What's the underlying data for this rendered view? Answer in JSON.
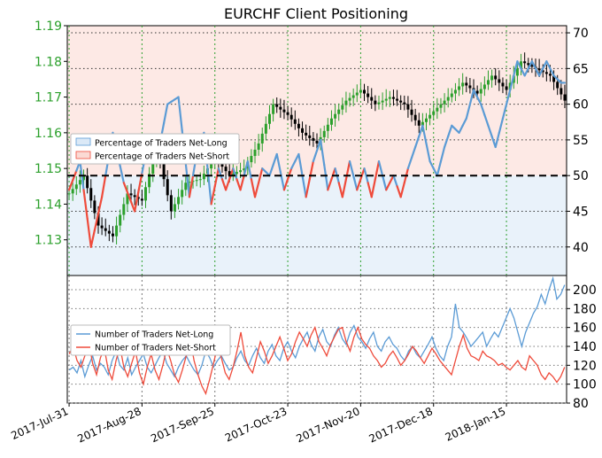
{
  "chart_data": {
    "type": "line",
    "title": "EURCHF Client Positioning",
    "colors": {
      "long": "#5b9bd5",
      "short": "#ef4b3b",
      "long_fill": "#dbe9f7",
      "short_fill": "#fbdad4",
      "grid_green": "#2ca02c",
      "candle_up": "#2ca02c",
      "candle_down": "#000000"
    },
    "x_labels": [
      "2017-Jul-31",
      "2017-Aug-28",
      "2017-Sep-25",
      "2017-Oct-23",
      "2017-Nov-20",
      "2017-Dec-18",
      "2018-Jan-15"
    ],
    "price_axis": {
      "ylim": [
        1.12,
        1.19
      ],
      "ticks": [
        "1.13",
        "1.14",
        "1.15",
        "1.16",
        "1.17",
        "1.18",
        "1.19"
      ]
    },
    "sentiment_axis": {
      "ylim": [
        36,
        71
      ],
      "ticks": [
        "40",
        "45",
        "50",
        "55",
        "60",
        "65",
        "70"
      ],
      "reference": 50
    },
    "count_axis": {
      "ylim": [
        80,
        215
      ],
      "ticks": [
        "80",
        "100",
        "120",
        "140",
        "160",
        "180",
        "200"
      ]
    },
    "legend_top": [
      {
        "label": "Percentage of Traders Net-Long"
      },
      {
        "label": "Percentage of Traders Net-Short"
      }
    ],
    "legend_bottom": [
      {
        "label": "Number of Traders Net-Long"
      },
      {
        "label": "Number of Traders Net-Short"
      }
    ],
    "price_anchors": [
      [
        0,
        1.143
      ],
      [
        4,
        1.148
      ],
      [
        8,
        1.134
      ],
      [
        12,
        1.131
      ],
      [
        16,
        1.143
      ],
      [
        20,
        1.141
      ],
      [
        24,
        1.156
      ],
      [
        28,
        1.138
      ],
      [
        32,
        1.146
      ],
      [
        36,
        1.147
      ],
      [
        40,
        1.153
      ],
      [
        44,
        1.148
      ],
      [
        48,
        1.15
      ],
      [
        52,
        1.157
      ],
      [
        56,
        1.168
      ],
      [
        60,
        1.165
      ],
      [
        64,
        1.16
      ],
      [
        68,
        1.157
      ],
      [
        72,
        1.164
      ],
      [
        76,
        1.169
      ],
      [
        80,
        1.172
      ],
      [
        84,
        1.168
      ],
      [
        88,
        1.17
      ],
      [
        92,
        1.168
      ],
      [
        96,
        1.162
      ],
      [
        100,
        1.166
      ],
      [
        104,
        1.17
      ],
      [
        108,
        1.174
      ],
      [
        112,
        1.171
      ],
      [
        116,
        1.176
      ],
      [
        120,
        1.172
      ],
      [
        124,
        1.18
      ],
      [
        128,
        1.178
      ],
      [
        132,
        1.176
      ],
      [
        136,
        1.169
      ]
    ],
    "pct_long_anchors": [
      [
        0,
        48
      ],
      [
        3,
        52
      ],
      [
        6,
        40
      ],
      [
        9,
        47
      ],
      [
        12,
        56
      ],
      [
        15,
        49
      ],
      [
        18,
        45
      ],
      [
        21,
        53
      ],
      [
        24,
        52
      ],
      [
        27,
        60
      ],
      [
        30,
        61
      ],
      [
        33,
        47
      ],
      [
        35,
        53
      ],
      [
        37,
        56
      ],
      [
        39,
        46
      ],
      [
        41,
        51
      ],
      [
        43,
        48
      ],
      [
        45,
        51
      ],
      [
        47,
        48
      ],
      [
        49,
        52
      ],
      [
        51,
        47
      ],
      [
        53,
        51
      ],
      [
        55,
        50
      ],
      [
        57,
        53
      ],
      [
        59,
        48
      ],
      [
        61,
        51
      ],
      [
        63,
        53
      ],
      [
        65,
        47
      ],
      [
        67,
        52
      ],
      [
        69,
        55
      ],
      [
        71,
        48
      ],
      [
        73,
        51
      ],
      [
        75,
        47
      ],
      [
        77,
        52
      ],
      [
        79,
        48
      ],
      [
        81,
        51
      ],
      [
        83,
        47
      ],
      [
        85,
        52
      ],
      [
        87,
        48
      ],
      [
        89,
        50
      ],
      [
        91,
        47
      ],
      [
        93,
        51
      ],
      [
        95,
        54
      ],
      [
        97,
        57
      ],
      [
        99,
        52
      ],
      [
        101,
        50
      ],
      [
        103,
        54
      ],
      [
        105,
        57
      ],
      [
        107,
        56
      ],
      [
        109,
        58
      ],
      [
        111,
        62
      ],
      [
        113,
        60
      ],
      [
        115,
        57
      ],
      [
        117,
        54
      ],
      [
        119,
        58
      ],
      [
        121,
        62
      ],
      [
        123,
        66
      ],
      [
        125,
        64
      ],
      [
        127,
        66
      ],
      [
        129,
        64
      ],
      [
        131,
        66
      ],
      [
        133,
        64
      ],
      [
        135,
        63
      ]
    ],
    "long_count": [
      115,
      118,
      112,
      125,
      108,
      120,
      130,
      115,
      122,
      118,
      110,
      125,
      135,
      120,
      115,
      128,
      110,
      118,
      125,
      132,
      118,
      112,
      120,
      128,
      135,
      122,
      115,
      108,
      118,
      125,
      130,
      122,
      115,
      110,
      120,
      135,
      128,
      118,
      125,
      130,
      122,
      115,
      118,
      128,
      135,
      125,
      120,
      130,
      138,
      128,
      122,
      135,
      142,
      130,
      125,
      138,
      145,
      135,
      128,
      140,
      148,
      155,
      142,
      135,
      150,
      158,
      145,
      140,
      152,
      160,
      148,
      142,
      155,
      162,
      150,
      145,
      138,
      148,
      155,
      140,
      135,
      145,
      150,
      142,
      138,
      130,
      125,
      135,
      140,
      132,
      128,
      135,
      142,
      150,
      138,
      130,
      125,
      140,
      150,
      185,
      160,
      155,
      148,
      140,
      145,
      150,
      155,
      140,
      148,
      155,
      150,
      160,
      170,
      180,
      170,
      155,
      140,
      155,
      165,
      175,
      182,
      195,
      185,
      200,
      212,
      190,
      195,
      205
    ],
    "short_count": [
      132,
      140,
      125,
      118,
      130,
      145,
      122,
      110,
      128,
      138,
      115,
      105,
      125,
      140,
      118,
      108,
      122,
      135,
      112,
      100,
      118,
      132,
      115,
      105,
      120,
      138,
      125,
      110,
      102,
      115,
      130,
      148,
      125,
      110,
      98,
      90,
      105,
      122,
      140,
      128,
      112,
      105,
      118,
      135,
      155,
      130,
      118,
      112,
      128,
      145,
      135,
      122,
      130,
      140,
      150,
      138,
      125,
      132,
      145,
      155,
      148,
      140,
      152,
      160,
      145,
      138,
      130,
      142,
      150,
      158,
      160,
      145,
      135,
      150,
      160,
      148,
      142,
      138,
      130,
      125,
      118,
      122,
      130,
      135,
      128,
      120,
      125,
      132,
      140,
      135,
      128,
      122,
      130,
      138,
      132,
      125,
      120,
      115,
      110,
      125,
      140,
      152,
      138,
      130,
      128,
      125,
      135,
      130,
      128,
      125,
      120,
      122,
      118,
      115,
      120,
      125,
      118,
      115,
      130,
      125,
      120,
      110,
      105,
      112,
      108,
      102,
      108,
      118
    ]
  }
}
